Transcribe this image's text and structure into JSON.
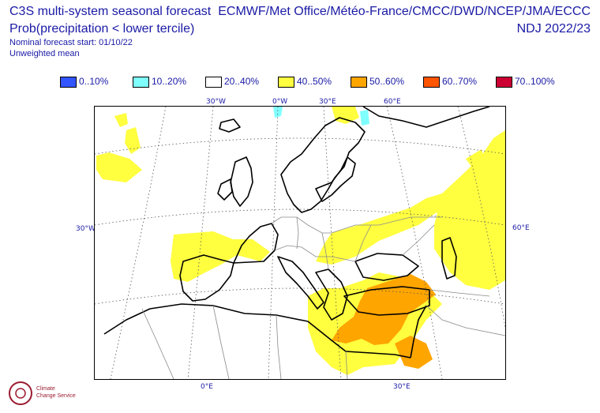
{
  "header": {
    "title": "C3S multi-system seasonal forecast",
    "variable": "Prob(precipitation < lower tercile)",
    "start": "Nominal forecast start: 01/10/22",
    "method": "Unweighted mean",
    "systems": "ECMWF/Met Office/Météo-France/CMCC/DWD/NCEP/JMA/ECCC",
    "period": "NDJ 2022/23"
  },
  "legend": [
    {
      "label": "0..10%",
      "color": "#3355ff"
    },
    {
      "label": "10..20%",
      "color": "#80ffff"
    },
    {
      "label": "20..40%",
      "color": "#ffffff"
    },
    {
      "label": "40..50%",
      "color": "#ffff40"
    },
    {
      "label": "50..60%",
      "color": "#ffa500"
    },
    {
      "label": "60..70%",
      "color": "#ff5500"
    },
    {
      "label": "70..100%",
      "color": "#cc0033"
    }
  ],
  "graticule_labels": {
    "top": [
      "30°W",
      "0°W",
      "30°E",
      "60°E"
    ],
    "bottom": [
      "0°E",
      "30°E"
    ],
    "left": "30°W",
    "right": "60°E"
  },
  "logo": {
    "text": "Climate Change Service",
    "icon": "climate-service-logo-icon"
  }
}
